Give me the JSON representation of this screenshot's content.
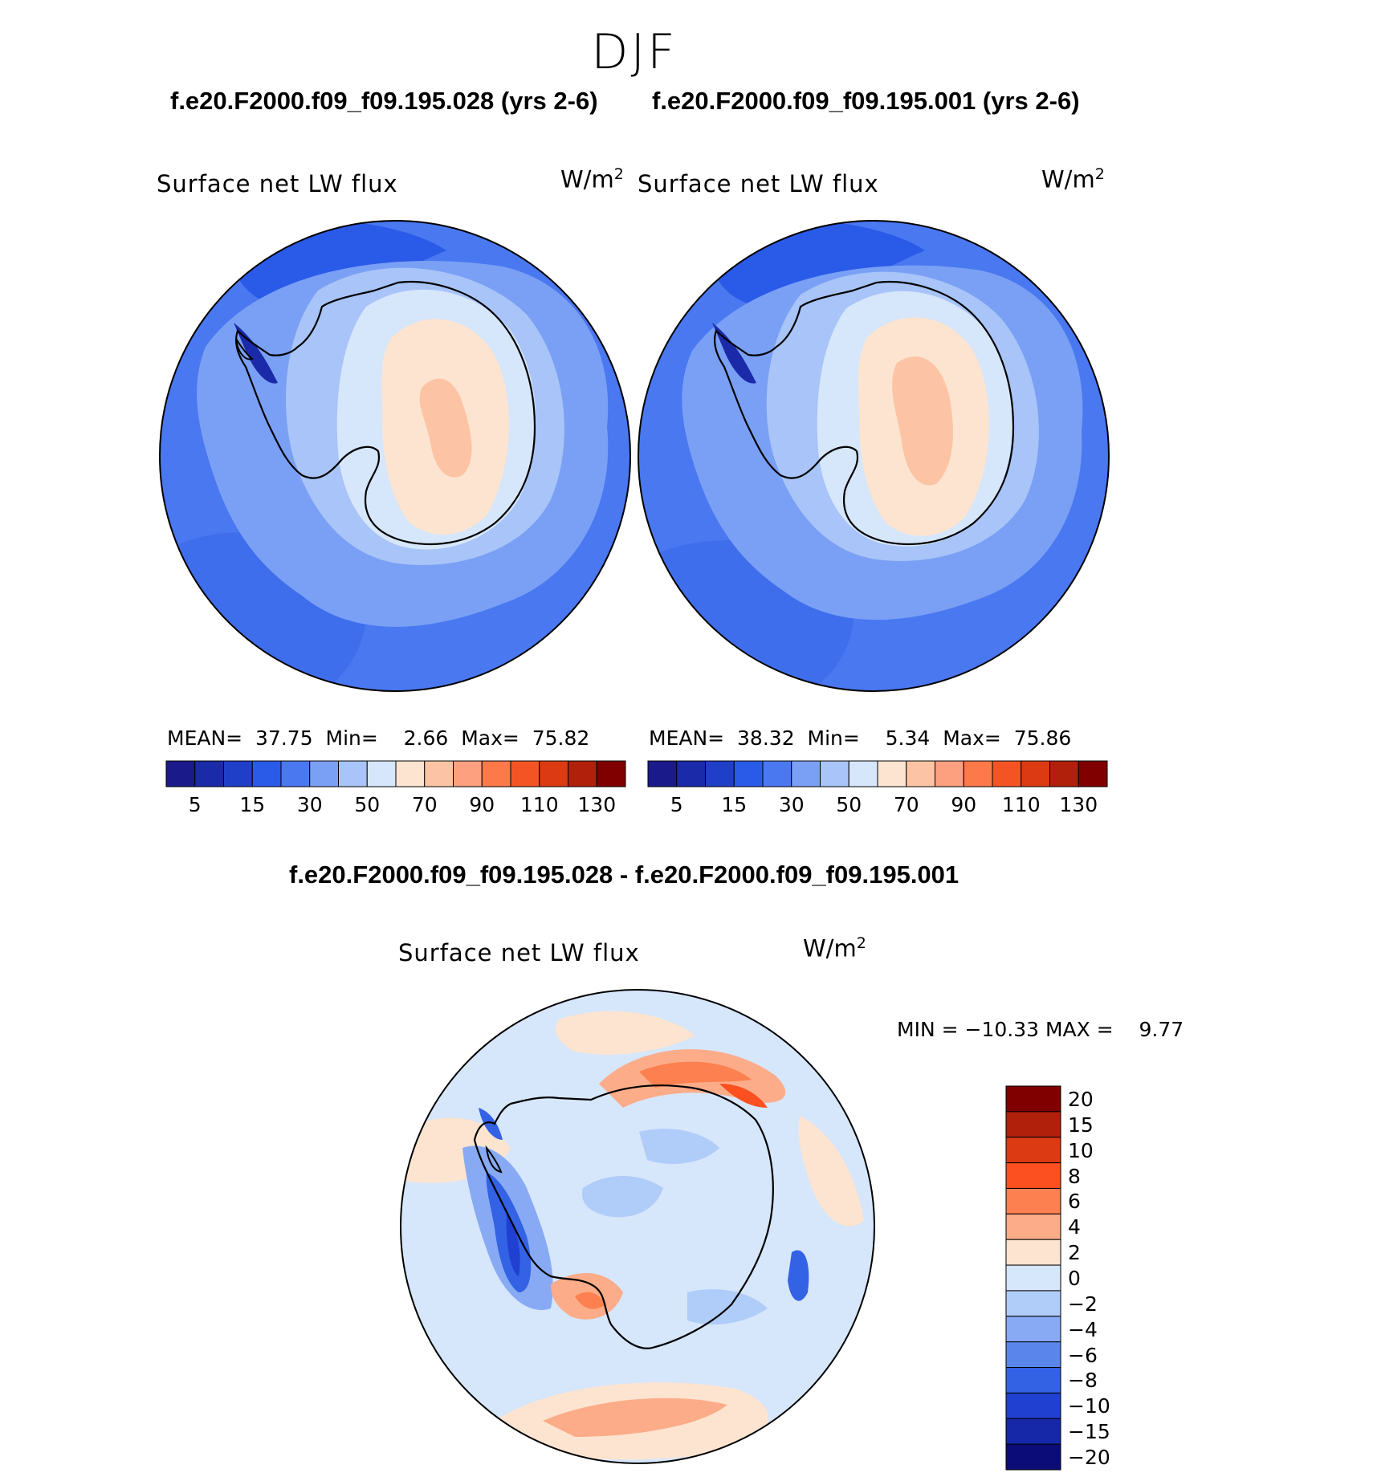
{
  "season": "DJF",
  "top_titles": {
    "left": "f.e20.F2000.f09_f09.195.028 (yrs 2-6)",
    "right": "f.e20.F2000.f09_f09.195.001 (yrs 2-6)"
  },
  "diff_title": "f.e20.F2000.f09_f09.195.028 - f.e20.F2000.f09_f09.195.001",
  "variable_label": "Surface net LW flux",
  "units": {
    "base": "W/m",
    "exponent": "2"
  },
  "panels": [
    {
      "mean_label": "MEAN=",
      "mean": "37.75",
      "min_label": "Min=",
      "min": "2.66",
      "max_label": "Max=",
      "max": "75.82"
    },
    {
      "mean_label": "MEAN=",
      "mean": "38.32",
      "min_label": "Min=",
      "min": "5.34",
      "max_label": "Max=",
      "max": "75.86"
    }
  ],
  "diff_stats": {
    "min_label": "MIN =",
    "min": "−10.33",
    "max_label": "MAX =",
    "max": "9.77"
  },
  "chart_data": [
    {
      "type": "heatmap",
      "projection": "south polar stereographic",
      "title": "Surface net LW flux",
      "units": "W/m^2",
      "case": "f.e20.F2000.f09_f09.195.028 (yrs 2-6)",
      "stats": {
        "mean": 37.75,
        "min": 2.66,
        "max": 75.82
      },
      "colorbar": {
        "levels": [
          0,
          5,
          10,
          15,
          20,
          30,
          40,
          50,
          60,
          70,
          80,
          90,
          100,
          110,
          120,
          130,
          140
        ],
        "tick_labels": [
          "5",
          "15",
          "30",
          "50",
          "70",
          "90",
          "110",
          "130"
        ],
        "colors": [
          "#1a1a8a",
          "#1a2aa8",
          "#1f3fc8",
          "#2a5ae8",
          "#4a78f0",
          "#7aa0f5",
          "#a8c4f8",
          "#d6e6fb",
          "#fce4d0",
          "#fcc4a4",
          "#fca080",
          "#fc7a4a",
          "#f45424",
          "#dc3a12",
          "#b0200a",
          "#800000"
        ]
      }
    },
    {
      "type": "heatmap",
      "projection": "south polar stereographic",
      "title": "Surface net LW flux",
      "units": "W/m^2",
      "case": "f.e20.F2000.f09_f09.195.001 (yrs 2-6)",
      "stats": {
        "mean": 38.32,
        "min": 5.34,
        "max": 75.86
      },
      "colorbar": {
        "levels": [
          0,
          5,
          10,
          15,
          20,
          30,
          40,
          50,
          60,
          70,
          80,
          90,
          100,
          110,
          120,
          130,
          140
        ],
        "tick_labels": [
          "5",
          "15",
          "30",
          "50",
          "70",
          "90",
          "110",
          "130"
        ],
        "colors": [
          "#1a1a8a",
          "#1a2aa8",
          "#1f3fc8",
          "#2a5ae8",
          "#4a78f0",
          "#7aa0f5",
          "#a8c4f8",
          "#d6e6fb",
          "#fce4d0",
          "#fcc4a4",
          "#fca080",
          "#fc7a4a",
          "#f45424",
          "#dc3a12",
          "#b0200a",
          "#800000"
        ]
      }
    },
    {
      "type": "heatmap",
      "projection": "south polar stereographic",
      "title": "Surface net LW flux",
      "units": "W/m^2",
      "case": "f.e20.F2000.f09_f09.195.028 - f.e20.F2000.f09_f09.195.001",
      "stats": {
        "min": -10.33,
        "max": 9.77
      },
      "colorbar": {
        "levels": [
          -20,
          -15,
          -10,
          -8,
          -6,
          -4,
          -2,
          0,
          2,
          4,
          6,
          8,
          10,
          15,
          20
        ],
        "tick_labels": [
          "20",
          "15",
          "10",
          "8",
          "6",
          "4",
          "2",
          "0",
          "−2",
          "−4",
          "−6",
          "−8",
          "−10",
          "−15",
          "−20"
        ],
        "colors": [
          "#800000",
          "#b0200a",
          "#dc3a12",
          "#fc5020",
          "#fc8050",
          "#fcac88",
          "#fde4d0",
          "#d6e6fb",
          "#b0ccf8",
          "#88aaf4",
          "#5a86ec",
          "#3462e4",
          "#1f40d0",
          "#1628a8",
          "#0c0c78"
        ]
      }
    }
  ]
}
